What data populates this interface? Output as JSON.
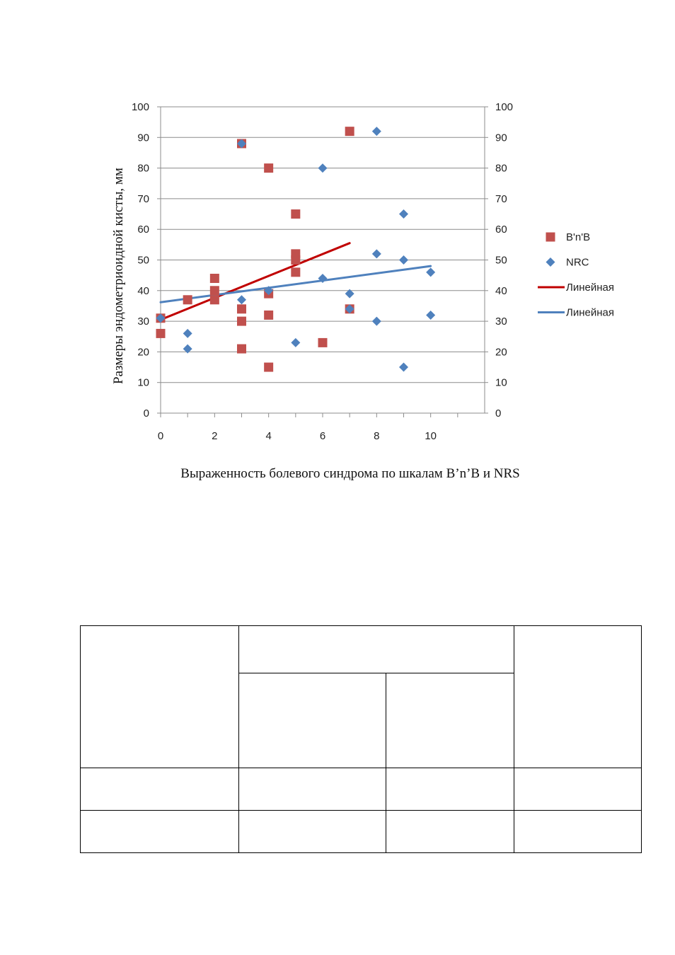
{
  "chart_data": {
    "type": "scatter",
    "title": "",
    "xlabel": "Выраженность болевого синдрома по шкалам B’n’B и NRS",
    "ylabel": "Размеры эндометриоидной кисты, мм",
    "xlim": [
      0,
      12
    ],
    "ylim": [
      0,
      100
    ],
    "x_ticks": [
      0,
      2,
      4,
      6,
      8,
      10
    ],
    "y_ticks": [
      0,
      10,
      20,
      30,
      40,
      50,
      60,
      70,
      80,
      90,
      100
    ],
    "grid": true,
    "secondary_y_axis": true,
    "legend_position": "right",
    "series": [
      {
        "name": "B'n'B",
        "marker": "square",
        "color": "#c0504d",
        "points": [
          [
            0,
            31
          ],
          [
            0,
            26
          ],
          [
            1,
            37
          ],
          [
            2,
            44
          ],
          [
            2,
            40
          ],
          [
            2,
            37
          ],
          [
            3,
            88
          ],
          [
            3,
            34
          ],
          [
            3,
            30
          ],
          [
            3,
            21
          ],
          [
            4,
            80
          ],
          [
            4,
            39
          ],
          [
            4,
            32
          ],
          [
            4,
            15
          ],
          [
            5,
            65
          ],
          [
            5,
            52
          ],
          [
            5,
            50
          ],
          [
            5,
            46
          ],
          [
            6,
            23
          ],
          [
            7,
            92
          ],
          [
            7,
            34
          ]
        ]
      },
      {
        "name": "NRC",
        "marker": "diamond",
        "color": "#4f81bd",
        "points": [
          [
            0,
            31
          ],
          [
            1,
            26
          ],
          [
            1,
            21
          ],
          [
            3,
            88
          ],
          [
            3,
            37
          ],
          [
            4,
            40
          ],
          [
            5,
            23
          ],
          [
            6,
            80
          ],
          [
            6,
            44
          ],
          [
            7,
            39
          ],
          [
            7,
            34
          ],
          [
            8,
            92
          ],
          [
            8,
            52
          ],
          [
            8,
            30
          ],
          [
            9,
            65
          ],
          [
            9,
            50
          ],
          [
            9,
            15
          ],
          [
            10,
            46
          ],
          [
            10,
            32
          ]
        ]
      },
      {
        "name": "Линейная",
        "type": "line",
        "color": "#c00000",
        "points": [
          [
            0,
            30.5
          ],
          [
            7,
            55.5
          ]
        ]
      },
      {
        "name": "Линейная",
        "type": "line",
        "color": "#4f81bd",
        "points": [
          [
            0,
            36.2
          ],
          [
            10,
            48
          ]
        ]
      }
    ]
  },
  "table": {
    "rows": 4,
    "cols": 4
  }
}
